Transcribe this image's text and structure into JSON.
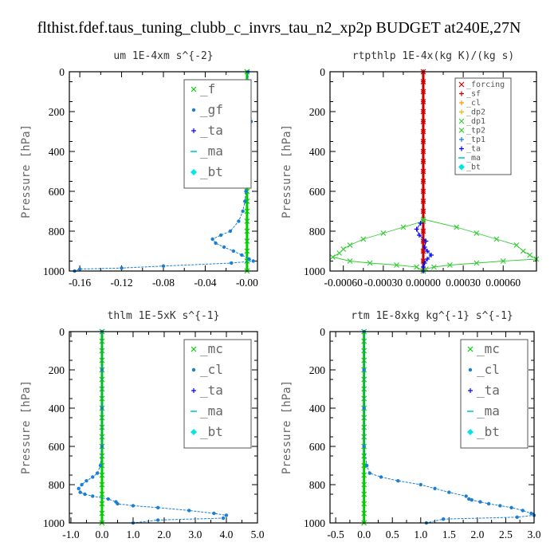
{
  "title": "flthist.fdef.taus_tuning_clubb_c_invrs_tau_n2_xp2p  BUDGET at240E,27N",
  "chart_data": [
    {
      "type": "line",
      "title": "um  1E-4xm s^{-2}",
      "ylabel": "Pressure [hPa]",
      "ylim": [
        1000,
        0
      ],
      "xlim": [
        -0.17,
        0.01
      ],
      "yticks": [
        0,
        200,
        400,
        600,
        800,
        1000
      ],
      "xticks": [
        -0.16,
        -0.12,
        -0.08,
        -0.04,
        0.0
      ],
      "xtick_labels": [
        "-0.16",
        "-0.12",
        "-0.08",
        "-0.04",
        "-0.00"
      ],
      "legend_style": "big",
      "legend_position": "top-right",
      "series": [
        {
          "name": "_f",
          "color": "#00cc00",
          "marker": "x",
          "p": [
            0,
            50,
            100,
            150,
            200,
            250,
            300,
            350,
            400,
            450,
            500,
            550,
            600,
            650,
            700,
            750,
            800,
            850,
            900,
            950,
            1000
          ],
          "x": [
            0,
            0,
            0,
            0,
            0,
            0,
            0,
            0,
            0,
            0,
            0,
            0,
            0,
            0,
            0,
            0,
            0,
            0,
            0,
            0,
            0
          ]
        },
        {
          "name": "_gf",
          "color": "#1a7fd4",
          "marker": "dot",
          "p": [
            0,
            100,
            150,
            200,
            250,
            300,
            400,
            500,
            600,
            650,
            700,
            750,
            800,
            820,
            840,
            860,
            880,
            900,
            920,
            940,
            950,
            960,
            975,
            985,
            990,
            1000
          ],
          "x": [
            0.001,
            0.001,
            0.0,
            0.001,
            0.004,
            0.001,
            0.0,
            0.0,
            -0.001,
            -0.002,
            -0.004,
            -0.008,
            -0.016,
            -0.025,
            -0.033,
            -0.03,
            -0.022,
            -0.013,
            -0.005,
            0.002,
            0.006,
            -0.015,
            -0.08,
            -0.12,
            -0.16,
            -0.165
          ]
        },
        {
          "name": "_ta",
          "color": "#0000ff",
          "marker": "plus",
          "p": [],
          "x": []
        },
        {
          "name": "_ma",
          "color": "#00cccc",
          "marker": "dash",
          "p": [],
          "x": []
        },
        {
          "name": "_bt",
          "color": "#00e5e5",
          "marker": "diamond",
          "p": [],
          "x": []
        }
      ]
    },
    {
      "type": "line",
      "title": "rtpthlp  1E-4x(kg K)/(kg s)",
      "ylabel": "Pressure [hPa]",
      "ylim": [
        1000,
        0
      ],
      "xlim": [
        -0.0007,
        0.00085
      ],
      "yticks": [
        0,
        200,
        400,
        600,
        800,
        1000
      ],
      "xticks": [
        -0.0006,
        -0.0003,
        0.0,
        0.0003,
        0.0006
      ],
      "xtick_labels": [
        "-0.00060",
        "-0.00030",
        "0.00000",
        "0.00030",
        "0.00060"
      ],
      "legend_style": "small",
      "legend_position": "top-right",
      "series": [
        {
          "name": "_forcing",
          "color": "#cc0000",
          "marker": "x",
          "p": [
            0,
            50,
            100,
            150,
            200,
            250,
            300,
            350,
            400,
            450,
            500,
            550,
            600,
            650,
            700,
            750,
            800,
            850,
            900,
            950,
            1000
          ],
          "x": [
            0,
            0,
            0,
            0,
            0,
            0,
            0,
            0,
            0,
            0,
            0,
            0,
            0,
            0,
            0,
            0,
            0,
            0,
            0,
            0,
            0
          ]
        },
        {
          "name": "_sf",
          "color": "#cc0000",
          "marker": "plus",
          "p": [
            0,
            50,
            100,
            150,
            200,
            250,
            300,
            350,
            400,
            450,
            500,
            550,
            600,
            650,
            700,
            750,
            800,
            850,
            900,
            950,
            1000
          ],
          "x": [
            0,
            0,
            0,
            0,
            0,
            0,
            0,
            0,
            0,
            0,
            0,
            0,
            0,
            0,
            0,
            0,
            0,
            0,
            0,
            0,
            0
          ]
        },
        {
          "name": "_cl",
          "color": "#ff9900",
          "marker": "plus",
          "p": [],
          "x": []
        },
        {
          "name": "_dp2",
          "color": "#e6b800",
          "marker": "plus",
          "p": [],
          "x": []
        },
        {
          "name": "_dp1",
          "color": "#33cc33",
          "marker": "x",
          "p": [
            750,
            780,
            810,
            840,
            870,
            890,
            910,
            930,
            950,
            960,
            970,
            980,
            1000
          ],
          "x": [
            0.0,
            -0.00015,
            -0.0003,
            -0.00045,
            -0.00055,
            -0.0006,
            -0.00063,
            -0.00068,
            -0.00055,
            -0.0004,
            -0.0002,
            -5e-05,
            0.0
          ]
        },
        {
          "name": "_tp2",
          "color": "#33cc33",
          "marker": "x",
          "p": [
            740,
            780,
            810,
            840,
            870,
            900,
            920,
            940,
            950,
            960,
            970,
            980,
            990,
            1000
          ],
          "x": [
            0.0,
            0.00025,
            0.0004,
            0.00055,
            0.0007,
            0.00075,
            0.0008,
            0.00085,
            0.0006,
            0.0004,
            0.0002,
            8e-05,
            2e-05,
            0.0
          ]
        },
        {
          "name": "_tp1",
          "color": "#1a7fd4",
          "marker": "plus",
          "p": [],
          "x": []
        },
        {
          "name": "_ta",
          "color": "#0000ff",
          "marker": "plus",
          "p": [
            760,
            790,
            820,
            850,
            880,
            900,
            920,
            940,
            960,
            980,
            1000
          ],
          "x": [
            -2e-05,
            -5e-05,
            -3e-05,
            2e-05,
            1e-05,
            3e-05,
            6e-05,
            3e-05,
            1e-05,
            0.0,
            0.0
          ]
        },
        {
          "name": "_ma",
          "color": "#00cccc",
          "marker": "dash",
          "p": [],
          "x": []
        },
        {
          "name": "_bt",
          "color": "#00e5e5",
          "marker": "diamond",
          "p": [],
          "x": []
        }
      ]
    },
    {
      "type": "line",
      "title": "thlm  1E-5xK s^{-1}",
      "ylabel": "Pressure [hPa]",
      "ylim": [
        1000,
        0
      ],
      "xlim": [
        -1.05,
        5.0
      ],
      "yticks": [
        0,
        200,
        400,
        600,
        800,
        1000
      ],
      "xticks": [
        -1.0,
        0.0,
        1.0,
        2.0,
        3.0,
        4.0,
        5.0
      ],
      "xtick_labels": [
        "-1.0",
        "0.0",
        "1.0",
        "2.0",
        "3.0",
        "4.0",
        "5.0"
      ],
      "legend_style": "big",
      "legend_position": "top-right",
      "series": [
        {
          "name": "_mc",
          "color": "#00cc00",
          "marker": "x",
          "p": [
            0,
            50,
            100,
            150,
            200,
            250,
            300,
            350,
            400,
            450,
            500,
            550,
            600,
            650,
            700,
            750,
            800,
            850,
            900,
            950,
            1000
          ],
          "x": [
            0,
            0,
            0,
            0,
            0,
            0,
            0,
            0,
            0,
            0,
            0,
            0,
            0,
            0,
            0,
            0,
            0,
            0,
            0,
            0,
            0
          ]
        },
        {
          "name": "_cl",
          "color": "#1a7fd4",
          "marker": "dot",
          "p": [
            0,
            200,
            400,
            600,
            700,
            740,
            760,
            780,
            800,
            820,
            840,
            850,
            860,
            875,
            890,
            900,
            910,
            920,
            935,
            950,
            960,
            975,
            985,
            1000
          ],
          "x": [
            0,
            0,
            0,
            0,
            -0.05,
            -0.15,
            -0.3,
            -0.5,
            -0.65,
            -0.75,
            -0.7,
            -0.55,
            -0.3,
            0.2,
            0.45,
            0.5,
            1.0,
            1.8,
            2.8,
            3.6,
            4.0,
            3.9,
            1.8,
            1.0
          ]
        },
        {
          "name": "_ta",
          "color": "#0000ff",
          "marker": "plus",
          "p": [],
          "x": []
        },
        {
          "name": "_ma",
          "color": "#00cccc",
          "marker": "dash",
          "p": [],
          "x": []
        },
        {
          "name": "_bt",
          "color": "#00e5e5",
          "marker": "diamond",
          "p": [],
          "x": []
        }
      ]
    },
    {
      "type": "line",
      "title": "rtm  1E-8xkg kg^{-1} s^{-1}",
      "ylabel": "Pressure [hPa]",
      "ylim": [
        1000,
        0
      ],
      "xlim": [
        -0.6,
        3.0
      ],
      "yticks": [
        0,
        200,
        400,
        600,
        800,
        1000
      ],
      "xticks": [
        -0.5,
        0.0,
        0.5,
        1.0,
        1.5,
        2.0,
        2.5,
        3.0
      ],
      "xtick_labels": [
        "-0.5",
        "0.0",
        "0.5",
        "1.0",
        "1.5",
        "2.0",
        "2.5",
        "3.0"
      ],
      "legend_style": "big",
      "legend_position": "top-right",
      "series": [
        {
          "name": "_mc",
          "color": "#00cc00",
          "marker": "x",
          "p": [
            0,
            50,
            100,
            150,
            200,
            250,
            300,
            350,
            400,
            450,
            500,
            550,
            600,
            650,
            700,
            750,
            800,
            850,
            900,
            950,
            1000
          ],
          "x": [
            0,
            0,
            0,
            0,
            0,
            0,
            0,
            0,
            0,
            0,
            0,
            0,
            0,
            0,
            0,
            0,
            0,
            0,
            0,
            0,
            0
          ]
        },
        {
          "name": "_cl",
          "color": "#1a7fd4",
          "marker": "dot",
          "p": [
            0,
            200,
            400,
            600,
            700,
            740,
            760,
            780,
            800,
            820,
            840,
            860,
            875,
            880,
            890,
            900,
            910,
            920,
            935,
            950,
            960,
            970,
            980,
            1000
          ],
          "x": [
            0,
            0,
            0,
            0,
            0.05,
            0.1,
            0.3,
            0.6,
            1.0,
            1.25,
            1.5,
            1.8,
            1.85,
            1.9,
            2.05,
            2.2,
            2.4,
            2.6,
            2.8,
            2.95,
            3.0,
            2.7,
            1.4,
            1.1
          ]
        },
        {
          "name": "_ta",
          "color": "#0000ff",
          "marker": "plus",
          "p": [],
          "x": []
        },
        {
          "name": "_ma",
          "color": "#00cccc",
          "marker": "dash",
          "p": [],
          "x": []
        },
        {
          "name": "_bt",
          "color": "#00e5e5",
          "marker": "diamond",
          "p": [],
          "x": []
        }
      ]
    }
  ]
}
